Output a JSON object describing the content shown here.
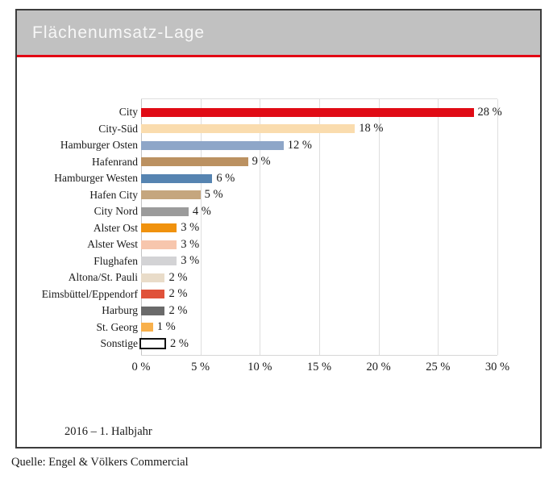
{
  "header": {
    "title": "Flächenumsatz-Lage"
  },
  "colors": {
    "accent_red": "#e30613",
    "header_bg": "#c1c1c1",
    "card_border": "#3c3c3c",
    "gridline": "#dedede"
  },
  "chart_data": {
    "type": "bar",
    "orientation": "horizontal",
    "title": "Flächenumsatz-Lage",
    "categories": [
      "City",
      "City-Süd",
      "Hamburger Osten",
      "Hafenrand",
      "Hamburger Westen",
      "Hafen City",
      "City Nord",
      "Alster Ost",
      "Alster West",
      "Flughafen",
      "Altona/St. Pauli",
      "Eimsbüttel/Eppendorf",
      "Harburg",
      "St. Georg",
      "Sonstige"
    ],
    "values": [
      28,
      18,
      12,
      9,
      6,
      5,
      4,
      3,
      3,
      3,
      2,
      2,
      2,
      1,
      2
    ],
    "value_labels": [
      "28 %",
      "18 %",
      "12 %",
      "9 %",
      "6 %",
      "5 %",
      "4 %",
      "3 %",
      "3 %",
      "3 %",
      "2 %",
      "2 %",
      "2 %",
      "1 %",
      "2 %"
    ],
    "bar_colors": [
      "#e00b15",
      "#fadcae",
      "#8ea6c8",
      "#bb9161",
      "#5684b1",
      "#c5a67e",
      "#9b9b9b",
      "#f0920e",
      "#f7c6ad",
      "#d3d3d5",
      "#e9dcc9",
      "#e0523a",
      "#6a6a6a",
      "#f8b04c",
      "#ffffff"
    ],
    "bar_outlined": [
      false,
      false,
      false,
      false,
      false,
      false,
      false,
      false,
      false,
      false,
      false,
      false,
      false,
      false,
      true
    ],
    "xlim": [
      0,
      30
    ],
    "x_tick_values": [
      0,
      5,
      10,
      15,
      20,
      25,
      30
    ],
    "x_tick_labels": [
      "0 %",
      "5 %",
      "10 %",
      "15 %",
      "20 %",
      "25 %",
      "30 %"
    ],
    "grid": true,
    "legend": "none",
    "note": "2016 – 1. Halbjahr"
  },
  "footer": {
    "source": "Quelle: Engel & Völkers Commercial"
  }
}
